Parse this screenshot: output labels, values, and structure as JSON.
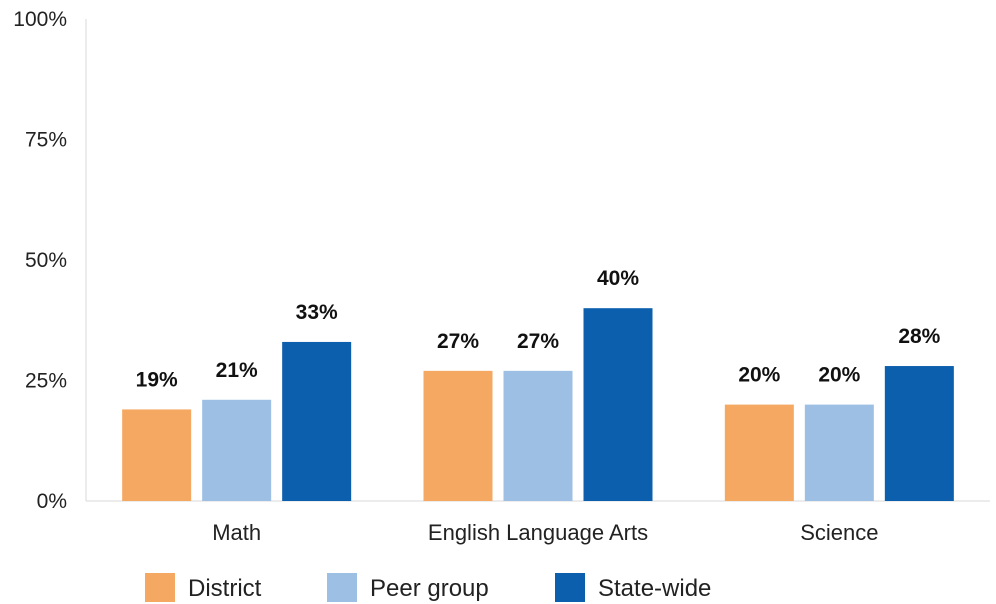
{
  "chart_data": {
    "type": "bar",
    "categories": [
      "Math",
      "English Language Arts",
      "Science"
    ],
    "series": [
      {
        "name": "District",
        "values": [
          19,
          27,
          20
        ],
        "labels": [
          "19%",
          "27%",
          "20%"
        ],
        "color": "#F4A862"
      },
      {
        "name": "Peer group",
        "values": [
          21,
          27,
          20
        ],
        "labels": [
          "21%",
          "27%",
          "20%"
        ],
        "color": "#9DBFE3"
      },
      {
        "name": "State-wide",
        "values": [
          33,
          40,
          28
        ],
        "labels": [
          "33%",
          "40%",
          "28%"
        ],
        "color": "#0B5FAD"
      }
    ],
    "ylim": [
      0,
      100
    ],
    "yticks": [
      0,
      25,
      50,
      75,
      100
    ],
    "ytick_labels": [
      "0%",
      "25%",
      "50%",
      "75%",
      "100%"
    ],
    "title": "",
    "xlabel": "",
    "ylabel": "",
    "grid": false,
    "legend_position": "bottom"
  }
}
